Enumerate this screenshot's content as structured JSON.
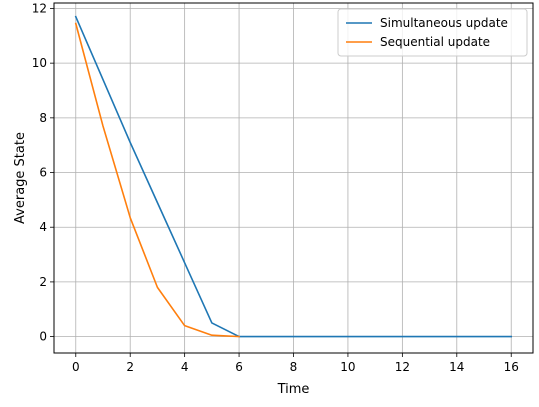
{
  "chart_data": {
    "type": "line",
    "title": "",
    "xlabel": "Time",
    "ylabel": "Average State",
    "xlim": [
      -0.8,
      16.8
    ],
    "ylim": [
      -0.6,
      12.2
    ],
    "xticks": [
      0,
      2,
      4,
      6,
      8,
      10,
      12,
      14,
      16
    ],
    "yticks": [
      0,
      2,
      4,
      6,
      8,
      10,
      12
    ],
    "grid": true,
    "legend_position": "top-right",
    "series": [
      {
        "name": "Simultaneous update",
        "color": "#1f77b4",
        "x": [
          0,
          1,
          2,
          3,
          4,
          5,
          6,
          7,
          8,
          9,
          10,
          11,
          12,
          13,
          14,
          15,
          16
        ],
        "y": [
          11.7,
          9.4,
          7.1,
          4.9,
          2.7,
          0.5,
          0.0,
          0.0,
          0.0,
          0.0,
          0.0,
          0.0,
          0.0,
          0.0,
          0.0,
          0.0,
          0.0
        ]
      },
      {
        "name": "Sequential update",
        "color": "#ff7f0e",
        "x": [
          0,
          1,
          2,
          3,
          4,
          5,
          6
        ],
        "y": [
          11.45,
          7.7,
          4.35,
          1.8,
          0.4,
          0.05,
          0.0
        ]
      }
    ]
  }
}
